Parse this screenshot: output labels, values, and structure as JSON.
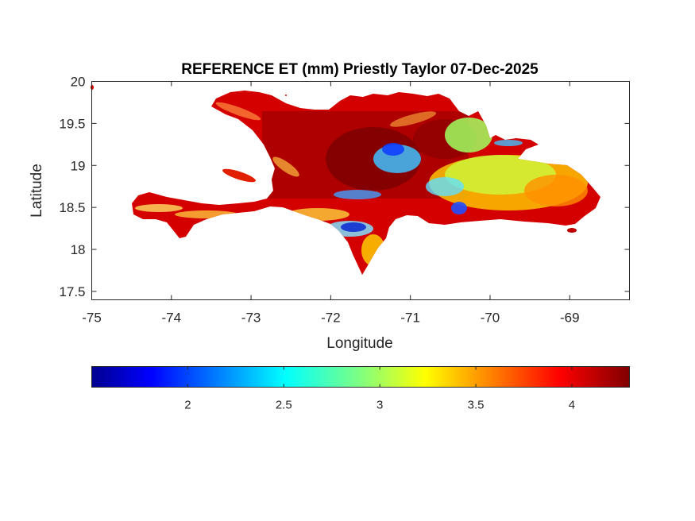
{
  "title": "REFERENCE ET (mm) Priestly Taylor 07-Dec-2025",
  "xlabel": "Longitude",
  "ylabel": "Latitude",
  "x_ticks": [
    "-75",
    "-74",
    "-73",
    "-72",
    "-71",
    "-70",
    "-69"
  ],
  "y_ticks": [
    "20",
    "19.5",
    "19",
    "18.5",
    "18",
    "17.5"
  ],
  "colorbar": {
    "colormap": "jet",
    "ticks": [
      "2",
      "2.5",
      "3",
      "3.5",
      "4"
    ]
  },
  "chart_data": {
    "type": "heatmap",
    "title": "REFERENCE ET (mm) Priestly Taylor 07-Dec-2025",
    "xlabel": "Longitude",
    "ylabel": "Latitude",
    "xlim": [
      -75,
      -68.25
    ],
    "ylim": [
      17.4,
      20
    ],
    "clim": [
      1.5,
      4.3
    ],
    "colormap": "jet",
    "colorbar_ticks": [
      2,
      2.5,
      3,
      3.5,
      4
    ],
    "region": "Hispaniola",
    "grid": false
  }
}
